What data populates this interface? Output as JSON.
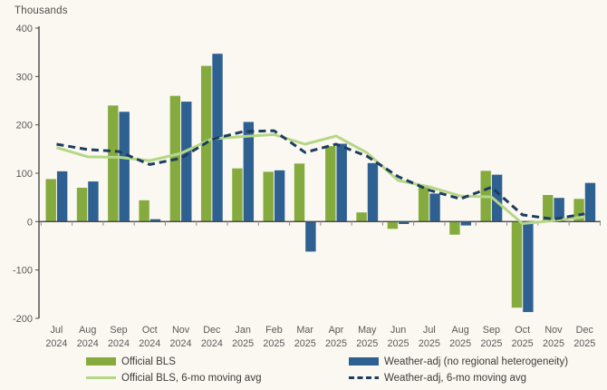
{
  "chart_data": {
    "type": "bar",
    "title": "",
    "ylabel": "Thousands",
    "xlabel": "",
    "ylim": [
      -200,
      400
    ],
    "ytick_step": 100,
    "grid": false,
    "legend_position": "bottom",
    "categories": [
      "Jul 2024",
      "Aug 2024",
      "Sep 2024",
      "Oct 2024",
      "Nov 2024",
      "Dec 2024",
      "Jan 2025",
      "Feb 2025",
      "Mar 2025",
      "Apr 2025",
      "May 2025",
      "Jun 2025",
      "Jul 2025",
      "Aug 2025",
      "Sep 2025",
      "Oct 2025",
      "Nov 2025",
      "Dec 2025"
    ],
    "series": [
      {
        "name": "Official BLS",
        "type": "bar",
        "color": "#85ab3f",
        "values": [
          88,
          70,
          240,
          44,
          260,
          322,
          110,
          103,
          120,
          156,
          19,
          -15,
          72,
          -27,
          105,
          -178,
          55,
          47
        ]
      },
      {
        "name": "Weather-adj (no regional heterogeneity)",
        "type": "bar",
        "color": "#2e6191",
        "values": [
          104,
          83,
          227,
          5,
          248,
          347,
          206,
          106,
          -62,
          161,
          121,
          -5,
          58,
          -8,
          97,
          -187,
          49,
          80
        ]
      },
      {
        "name": "Official BLS, 6-mo moving avg",
        "type": "line",
        "dash": "solid",
        "color": "#b6d687",
        "values": [
          153,
          134,
          133,
          126,
          141,
          171,
          176,
          180,
          160,
          177,
          142,
          85,
          72,
          53,
          51,
          -4,
          2,
          10
        ]
      },
      {
        "name": "Weather-adj, 6-mo moving avg",
        "type": "line",
        "dash": "dashed",
        "color": "#1d3d5f",
        "values": [
          160,
          149,
          145,
          118,
          131,
          170,
          186,
          188,
          143,
          160,
          135,
          93,
          65,
          47,
          71,
          14,
          5,
          16
        ]
      }
    ]
  },
  "colors": {
    "background": "#fbf8f1",
    "axis": "#4a4a4a",
    "tick_text": "#595959",
    "bar_green": "#85ab3f",
    "bar_blue": "#2e6191",
    "line_green": "#b6d687",
    "line_navy": "#1d3d5f"
  }
}
